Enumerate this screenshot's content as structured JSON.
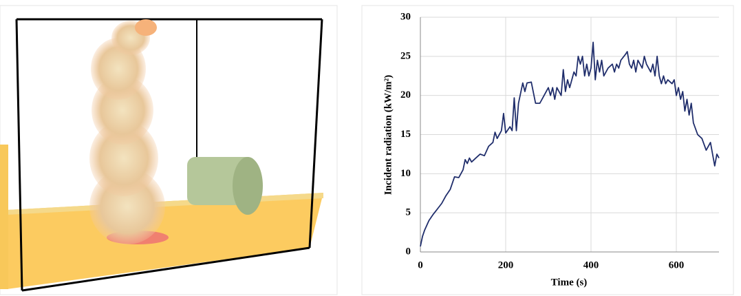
{
  "chart_data": {
    "type": "line",
    "xlabel": "Time (s)",
    "ylabel": "Incident radiation (kW/m²)",
    "x": [
      0,
      5,
      10,
      20,
      30,
      40,
      50,
      60,
      70,
      80,
      90,
      100,
      105,
      110,
      115,
      120,
      130,
      140,
      150,
      160,
      170,
      175,
      180,
      190,
      195,
      200,
      210,
      215,
      220,
      225,
      230,
      240,
      245,
      250,
      260,
      270,
      280,
      290,
      300,
      305,
      310,
      315,
      320,
      330,
      335,
      340,
      345,
      350,
      360,
      365,
      370,
      375,
      380,
      385,
      390,
      395,
      400,
      405,
      410,
      415,
      420,
      425,
      430,
      440,
      450,
      455,
      460,
      465,
      470,
      480,
      485,
      490,
      495,
      500,
      505,
      510,
      520,
      525,
      530,
      540,
      545,
      550,
      555,
      560,
      565,
      570,
      575,
      580,
      590,
      595,
      600,
      605,
      610,
      615,
      620,
      625,
      630,
      635,
      640,
      650,
      660,
      670,
      680,
      690,
      695,
      700
    ],
    "values": [
      0.7,
      2,
      2.8,
      4,
      4.8,
      5.5,
      6.2,
      7.2,
      8,
      9.6,
      9.5,
      10.5,
      11.8,
      11.3,
      12,
      11.5,
      12,
      12.5,
      12.3,
      13.5,
      14,
      15.3,
      14.5,
      15.5,
      17.7,
      15.2,
      16,
      15.5,
      19.7,
      15.5,
      19,
      21.6,
      20.5,
      21.6,
      21.7,
      19,
      19,
      20,
      21,
      20,
      21,
      19.5,
      21,
      20,
      23.3,
      20.5,
      22,
      21,
      23,
      22.5,
      25,
      24,
      25,
      22.5,
      24,
      22.5,
      23.5,
      26.8,
      22,
      24.5,
      23,
      24.5,
      22.5,
      23.5,
      24,
      23,
      24,
      23.5,
      24.5,
      25.2,
      25.6,
      24,
      23.5,
      24.5,
      23,
      24.5,
      23.5,
      25,
      24,
      23,
      24,
      22.5,
      25,
      22.5,
      21.5,
      22.5,
      21.5,
      22,
      21.5,
      22,
      20,
      21,
      19.5,
      20.5,
      18,
      19.5,
      17.5,
      19,
      16.5,
      15,
      14.5,
      13,
      14,
      11,
      12.5,
      12
    ],
    "color": "#1f2d6b",
    "xlim": [
      0,
      700
    ],
    "xticks": [
      0,
      200,
      400,
      600
    ],
    "ylim": [
      0,
      30
    ],
    "yticks": [
      0,
      5,
      10,
      15,
      20,
      25,
      30
    ],
    "grid": true
  }
}
